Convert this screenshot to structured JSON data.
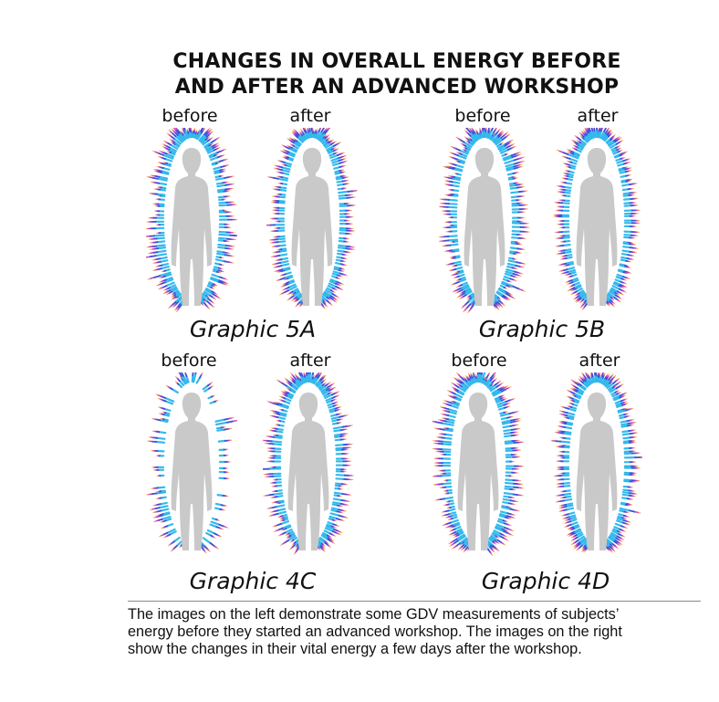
{
  "title": {
    "line1": "CHANGES IN OVERALL ENERGY BEFORE",
    "line2": "AND AFTER AN ADVANCED WORKSHOP"
  },
  "panels": [
    {
      "graphic": "Graphic 5A",
      "before": "before",
      "after": "after"
    },
    {
      "graphic": "Graphic 5B",
      "before": "before",
      "after": "after"
    },
    {
      "graphic": "Graphic 4C",
      "before": "before",
      "after": "after"
    },
    {
      "graphic": "Graphic 4D",
      "before": "before",
      "after": "after"
    }
  ],
  "caption": {
    "line1": "The images on the left demonstrate some GDV measurements of subjects’",
    "line2": "energy before they started an advanced workshop. The images on the right",
    "line3": "show the changes in their vital energy a few days after the workshop."
  },
  "colors": {
    "aura_inner": "#35b8ec",
    "aura_mid": "#3d4fd6",
    "aura_outer": "#c43fb4",
    "aura_tips": "#f2a25a",
    "silhouette": "#c9c9c9"
  }
}
